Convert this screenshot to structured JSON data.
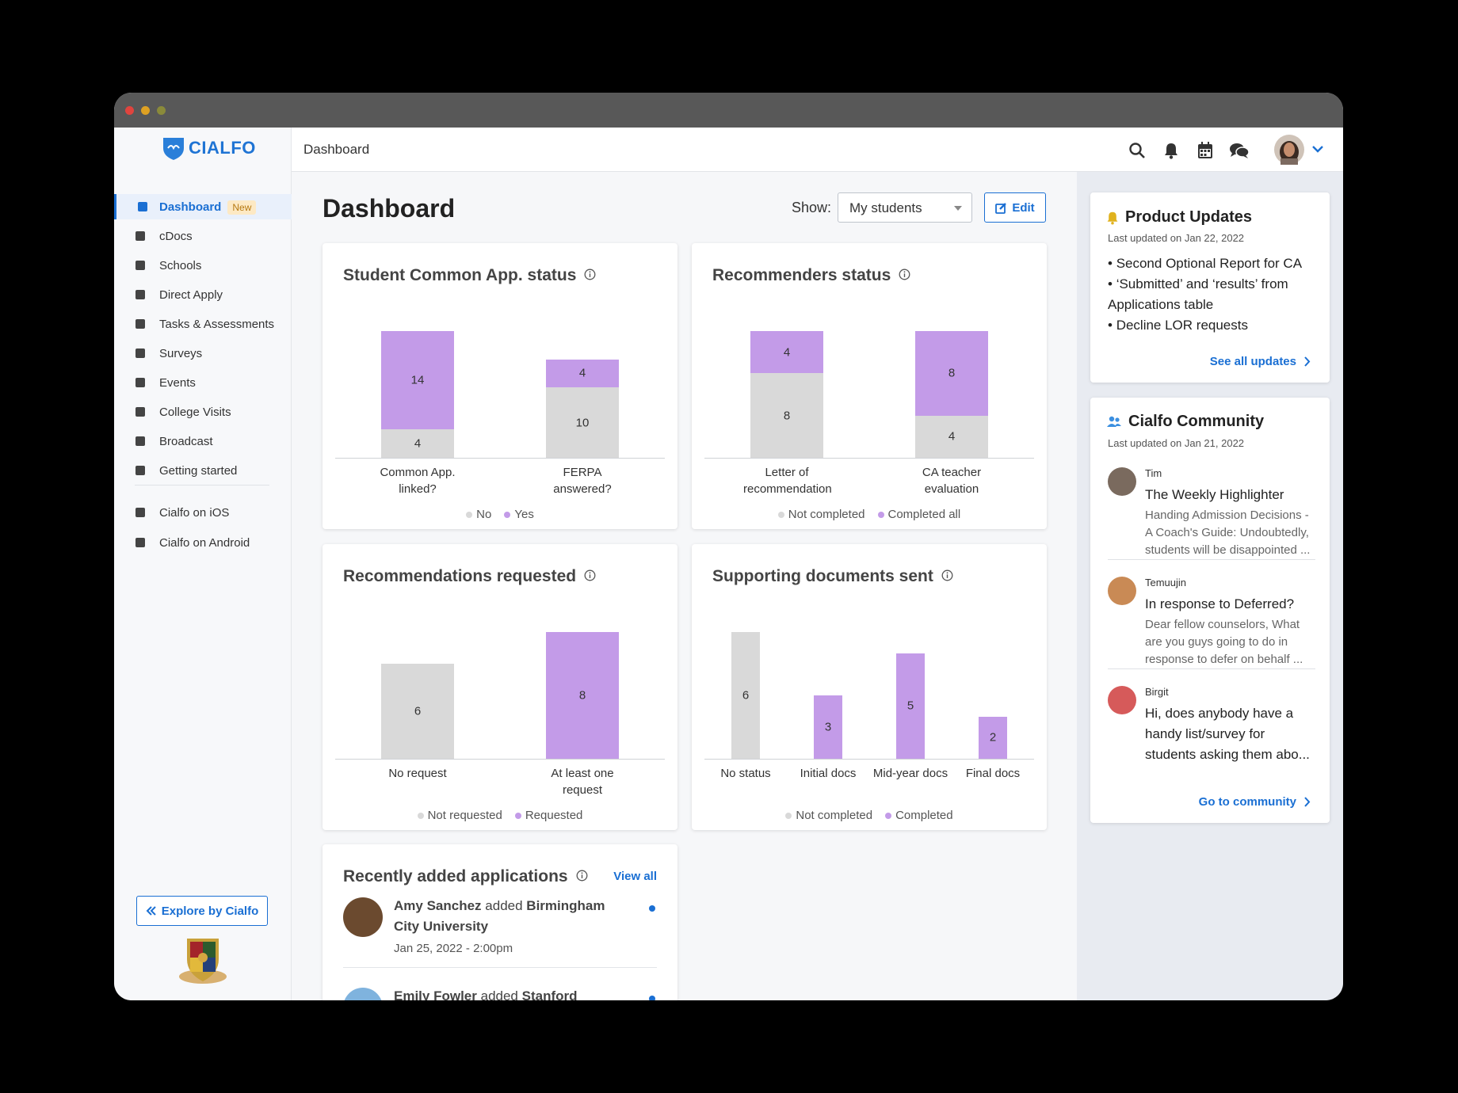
{
  "app": {
    "logo": "CIALFO",
    "header_title": "Dashboard"
  },
  "sidebar": {
    "nav": [
      {
        "label": "Dashboard",
        "badge": "New"
      },
      {
        "label": "cDocs"
      },
      {
        "label": "Schools"
      },
      {
        "label": "Direct Apply"
      },
      {
        "label": "Tasks & Assessments"
      },
      {
        "label": "Surveys"
      },
      {
        "label": "Events"
      },
      {
        "label": "College Visits"
      },
      {
        "label": "Broadcast"
      },
      {
        "label": "Getting started"
      }
    ],
    "apps": [
      "Cialfo on iOS",
      "Cialfo on Android"
    ],
    "explore": "Explore by Cialfo"
  },
  "page": {
    "title": "Dashboard",
    "show_label": "Show:",
    "show_value": "My students",
    "edit": "Edit"
  },
  "chart_data": [
    {
      "type": "bar",
      "stacked": true,
      "title": "Student Common App. status",
      "categories": [
        "Common App. linked?",
        "FERPA answered?"
      ],
      "series": [
        {
          "name": "No",
          "color": "#d9d9d9",
          "values": [
            4,
            10
          ]
        },
        {
          "name": "Yes",
          "color": "#c39be8",
          "values": [
            14,
            4
          ]
        }
      ]
    },
    {
      "type": "bar",
      "stacked": true,
      "title": "Recommenders status",
      "categories": [
        "Letter of recommendation",
        "CA teacher evaluation"
      ],
      "series": [
        {
          "name": "Not completed",
          "color": "#d9d9d9",
          "values": [
            8,
            4
          ]
        },
        {
          "name": "Completed all",
          "color": "#c39be8",
          "values": [
            4,
            8
          ]
        }
      ]
    },
    {
      "type": "bar",
      "stacked": true,
      "title": "Recommendations requested",
      "categories": [
        "No request",
        "At least one request"
      ],
      "series": [
        {
          "name": "Not requested",
          "color": "#d9d9d9",
          "values": [
            6,
            null
          ]
        },
        {
          "name": "Requested",
          "color": "#c39be8",
          "values": [
            null,
            8
          ]
        }
      ]
    },
    {
      "type": "bar",
      "stacked": true,
      "title": "Supporting documents sent",
      "categories": [
        "No status",
        "Initial docs",
        "Mid-year docs",
        "Final docs"
      ],
      "series": [
        {
          "name": "Not completed",
          "color": "#d9d9d9",
          "values": [
            6,
            null,
            null,
            null
          ]
        },
        {
          "name": "Completed",
          "color": "#c39be8",
          "values": [
            null,
            3,
            5,
            2
          ]
        }
      ]
    }
  ],
  "applications": {
    "title": "Recently added applications",
    "view_all": "View all",
    "items": [
      {
        "name": "Amy Sanchez",
        "action": "added",
        "school": "Birmingham City University",
        "date": "Jan 25, 2022 - 2:00pm"
      },
      {
        "name": "Emily Fowler",
        "action": "added",
        "school": "Stanford University"
      }
    ]
  },
  "product_updates": {
    "title": "Product Updates",
    "updated": "Last updated on Jan 22, 2022",
    "items": [
      "Second Optional Report for CA",
      "‘Submitted’ and ‘results’ from Applications table",
      "Decline LOR requests"
    ],
    "link": "See all updates"
  },
  "community": {
    "title": "Cialfo Community",
    "updated": "Last updated on Jan 21, 2022",
    "posts": [
      {
        "author": "Tim",
        "title": "The Weekly Highlighter",
        "excerpt": "Handing Admission Decisions - A Coach's Guide: Undoubtedly, students will be disappointed ..."
      },
      {
        "author": "Temuujin",
        "title": "In response to Deferred?",
        "excerpt": "Dear fellow counselors, What are you guys going to do  in response to defer on behalf ..."
      },
      {
        "author": "Birgit",
        "title": "Hi, does anybody have a handy list/survey for students asking them abo..."
      }
    ],
    "link": "Go to community"
  }
}
